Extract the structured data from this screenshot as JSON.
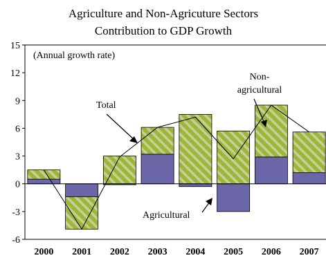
{
  "chart_data": {
    "type": "bar",
    "stacked": true,
    "title": [
      "Agriculture and Non-Agricuture Sectors",
      "Contribution to GDP Growth"
    ],
    "unit_note": "(Annual growth rate)",
    "categories": [
      "2000",
      "2001",
      "2002",
      "2003",
      "2004",
      "2005",
      "2006",
      "2007"
    ],
    "ylim": [
      -6,
      15
    ],
    "yticks": [
      "15",
      "12",
      "9",
      "6",
      "3",
      "0",
      "-3",
      "-6"
    ],
    "grid": false,
    "series": [
      {
        "name": "Agricultural",
        "kind": "bar",
        "color": "#6a66a8",
        "values": [
          0.5,
          -1.4,
          -0.1,
          3.2,
          -0.3,
          -3.0,
          2.9,
          1.2
        ]
      },
      {
        "name": "Non-agricultural",
        "kind": "bar",
        "color": "#9bb832",
        "values": [
          1.0,
          -3.5,
          3.0,
          2.9,
          7.5,
          5.7,
          5.6,
          4.4
        ]
      },
      {
        "name": "Total",
        "kind": "line",
        "color": "#000000",
        "values": [
          1.5,
          -4.9,
          2.9,
          6.1,
          7.2,
          2.7,
          8.5,
          5.6
        ]
      }
    ],
    "annotations": {
      "total_label": "Total",
      "nonag_label": [
        "Non-",
        "agricultural"
      ],
      "ag_label": "Agricultural"
    }
  }
}
